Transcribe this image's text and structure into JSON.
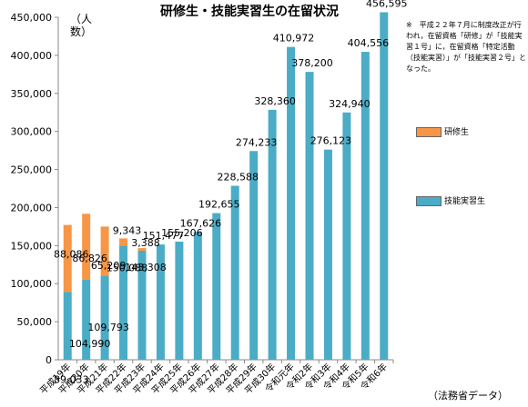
{
  "chart_data": {
    "type": "bar",
    "title": "研修生・技能実習生の在留状況",
    "ylabel": "（人数）",
    "ylim": [
      0,
      450000
    ],
    "yticks": [
      "0",
      "50,000",
      "100,000",
      "150,000",
      "200,000",
      "250,000",
      "300,000",
      "350,000",
      "400,000",
      "450,000"
    ],
    "categories": [
      "平成19年",
      "平成20年",
      "平成21年",
      "平成22年",
      "平成23年",
      "平成24年",
      "平成25年",
      "平成26年",
      "平成27年",
      "平成28年",
      "平成29年",
      "平成30年",
      "令和元年",
      "令和2年",
      "令和3年",
      "令和4年",
      "令和5年",
      "令和6年"
    ],
    "stacked": true,
    "series": [
      {
        "name": "技能実習生",
        "color": "#4bacc6",
        "values": [
          89033,
          104990,
          109793,
          150088,
          143308,
          151477,
          155206,
          167626,
          192655,
          228588,
          274233,
          328360,
          410972,
          378200,
          276123,
          324940,
          404556,
          456595
        ],
        "labels": [
          "89,033",
          "104,990",
          "109,793",
          "150,088",
          "143,308",
          "151,477",
          "155,206",
          "167,626",
          "192,655",
          "228,588",
          "274,233",
          "328,360",
          "410,972",
          "378,200",
          "276,123",
          "324,940",
          "404,556",
          "456,595"
        ]
      },
      {
        "name": "研修生",
        "color": "#f79646",
        "values": [
          88086,
          86826,
          65209,
          9343,
          3388,
          null,
          null,
          null,
          null,
          null,
          null,
          null,
          null,
          null,
          null,
          null,
          null,
          null
        ],
        "labels": [
          "88,086",
          "86,826",
          "65,209",
          "9,343",
          "3,388",
          "",
          "",
          "",
          "",
          "",
          "",
          "",
          "",
          "",
          "",
          "",
          "",
          ""
        ]
      }
    ],
    "note": "※　平成２２年７月に制度改正が行われ，在留資格「研修」が「技能実習１号」に，在留資格「特定活動（技能実習）」が「技能実習２号」となった。",
    "source": "（法務省データ）",
    "legend_position": "right"
  }
}
